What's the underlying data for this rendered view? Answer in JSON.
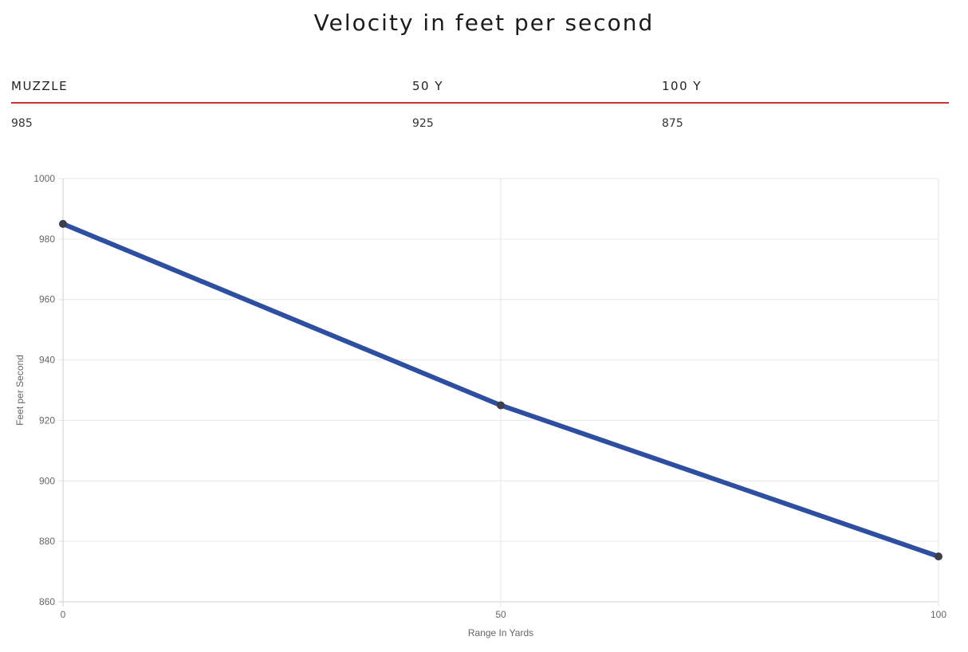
{
  "page": {
    "title": "Velocity in feet per second"
  },
  "table": {
    "headers": [
      "MUZZLE",
      "50 Y",
      "100 Y"
    ],
    "values": [
      "985",
      "925",
      "875"
    ]
  },
  "colors": {
    "accent_rule": "#c0392b",
    "series_line": "#2e4fa0",
    "point": "#3a3f4b",
    "grid": "#e6e6e6"
  },
  "chart_data": {
    "type": "line",
    "title": "",
    "xlabel": "Range In Yards",
    "ylabel": "Feet per Second",
    "x": [
      0,
      50,
      100
    ],
    "series": [
      {
        "values": [
          985,
          925,
          875
        ]
      }
    ],
    "xlim": [
      0,
      100
    ],
    "ylim": [
      860,
      1000
    ],
    "xticks": [
      0,
      50,
      100
    ],
    "yticks": [
      860,
      880,
      900,
      920,
      940,
      960,
      980,
      1000
    ],
    "grid": true,
    "legend": "none"
  }
}
